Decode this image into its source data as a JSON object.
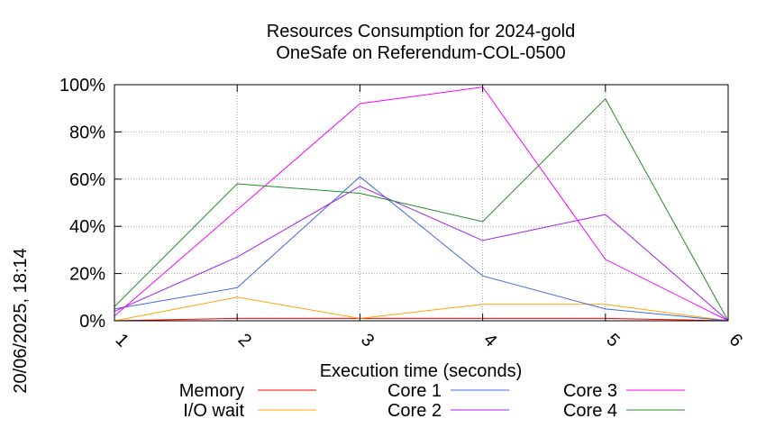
{
  "chart_data": {
    "type": "line",
    "title": "Resources Consumption for 2024-gold",
    "subtitle": "OneSafe on Referendum-COL-0500",
    "xlabel": "Execution time (seconds)",
    "ylabel": "",
    "side_label": "20/06/2025, 18:14",
    "x": [
      1,
      2,
      3,
      4,
      5,
      6
    ],
    "x_tick_labels": [
      "1",
      "2",
      "3",
      "4",
      "5",
      "6"
    ],
    "y_tick_labels": [
      "0%",
      "20%",
      "40%",
      "60%",
      "80%",
      "100%"
    ],
    "ylim": [
      0,
      100
    ],
    "xlim": [
      1,
      6
    ],
    "grid": true,
    "legend_position": "bottom",
    "series": [
      {
        "name": "Memory",
        "color": "#ff0000",
        "values": [
          0,
          1,
          1,
          1,
          1,
          0
        ]
      },
      {
        "name": "I/O wait",
        "color": "#ffa500",
        "values": [
          0,
          10,
          1,
          7,
          7,
          0
        ]
      },
      {
        "name": "Core 1",
        "color": "#4169e1",
        "values": [
          5,
          14,
          61,
          19,
          5,
          0
        ]
      },
      {
        "name": "Core 2",
        "color": "#a020f0",
        "values": [
          4,
          27,
          57,
          34,
          45,
          0
        ]
      },
      {
        "name": "Core 3",
        "color": "#ff00ff",
        "values": [
          2,
          47,
          92,
          99,
          26,
          0
        ]
      },
      {
        "name": "Core 4",
        "color": "#228b22",
        "values": [
          6,
          58,
          54,
          42,
          94,
          0
        ]
      }
    ]
  }
}
